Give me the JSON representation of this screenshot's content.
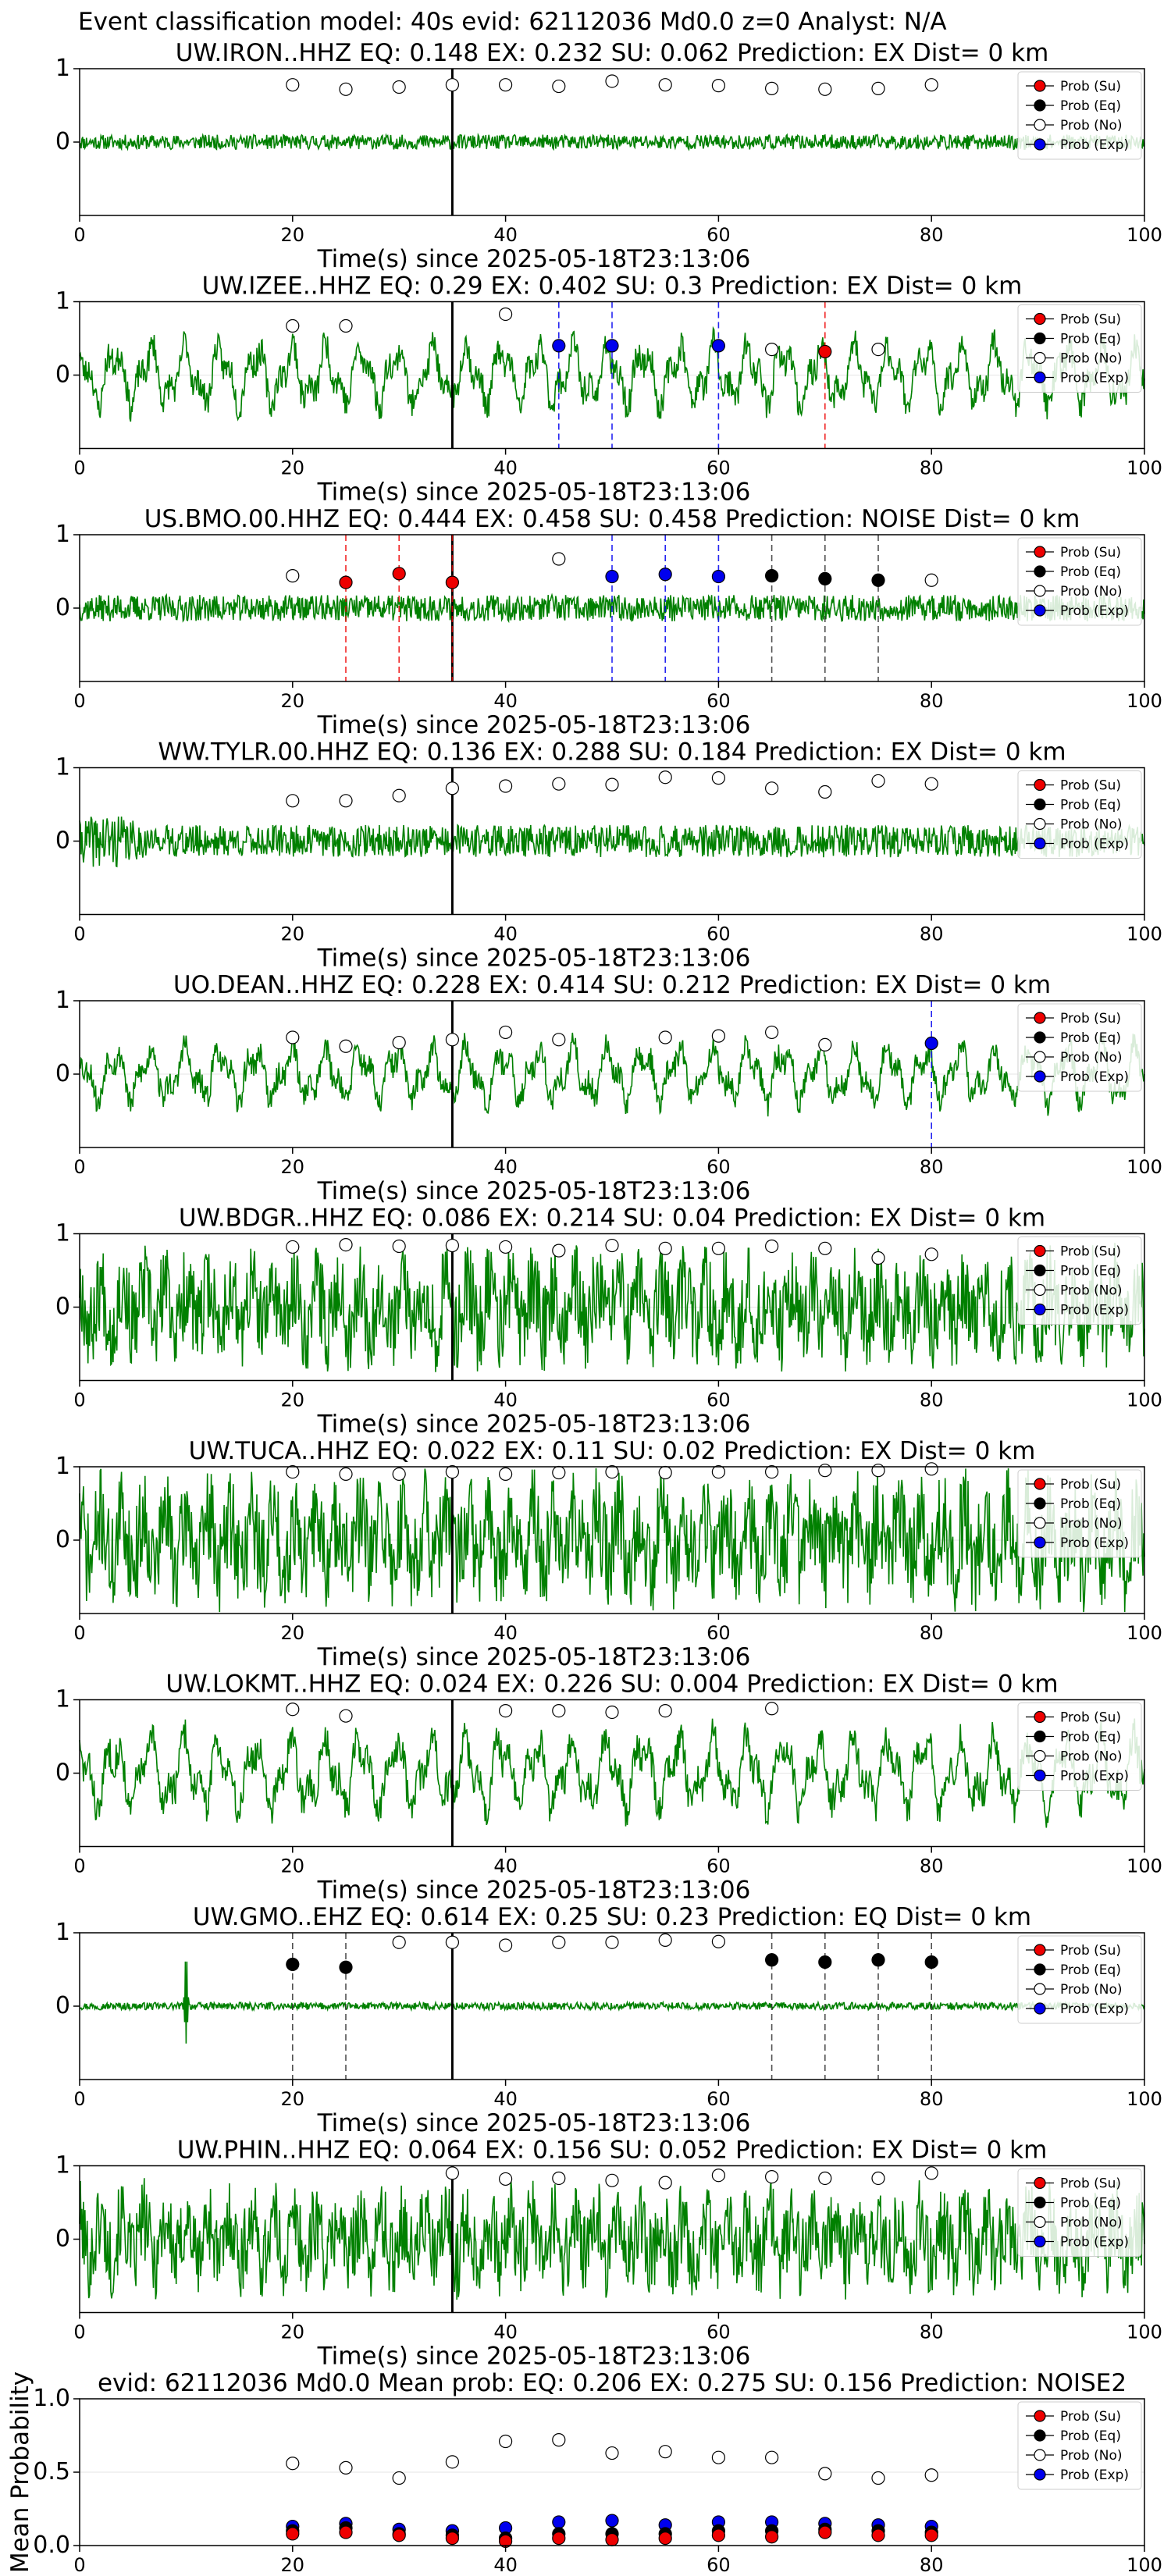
{
  "figure": {
    "suptitle": "Event classification model: 40s evid: 62112036 Md0.0 z=0 Analyst: N/A"
  },
  "colors": {
    "trace": "#008000",
    "su": "#ee0000",
    "eq": "#000000",
    "no": "#ffffff",
    "exp": "#0000ee",
    "pick": "#000000"
  },
  "legend": {
    "entries": [
      "Prob (Su)",
      "Prob (Eq)",
      "Prob (No)",
      "Prob (Exp)"
    ]
  },
  "chart_data": [
    {
      "type": "line",
      "station": "UW.IRON..HHZ",
      "title": "UW.IRON..HHZ   EQ: 0.148  EX: 0.232  SU: 0.062   Prediction: EX    Dist= 0 km",
      "xlabel": "Time(s) since 2025-05-18T23:13:06",
      "xlim": [
        0,
        100
      ],
      "ylim": [
        -1,
        1
      ],
      "xticks": [
        "0",
        "20",
        "40",
        "60",
        "80",
        "100"
      ],
      "yticks": [
        "1",
        "0"
      ],
      "pick_time": 35,
      "trace": {
        "amplitude": 0.1,
        "style": "noise",
        "seed": 11
      },
      "points": [
        {
          "x": 20,
          "y": 0.78,
          "cls": "no"
        },
        {
          "x": 25,
          "y": 0.72,
          "cls": "no"
        },
        {
          "x": 30,
          "y": 0.75,
          "cls": "no"
        },
        {
          "x": 35,
          "y": 0.78,
          "cls": "no"
        },
        {
          "x": 40,
          "y": 0.78,
          "cls": "no"
        },
        {
          "x": 45,
          "y": 0.76,
          "cls": "no"
        },
        {
          "x": 50,
          "y": 0.83,
          "cls": "no"
        },
        {
          "x": 55,
          "y": 0.78,
          "cls": "no"
        },
        {
          "x": 60,
          "y": 0.77,
          "cls": "no"
        },
        {
          "x": 65,
          "y": 0.73,
          "cls": "no"
        },
        {
          "x": 70,
          "y": 0.72,
          "cls": "no"
        },
        {
          "x": 75,
          "y": 0.73,
          "cls": "no"
        },
        {
          "x": 80,
          "y": 0.78,
          "cls": "no"
        }
      ]
    },
    {
      "type": "line",
      "station": "UW.IZEE..HHZ",
      "title": "UW.IZEE..HHZ   EQ: 0.29  EX: 0.402  SU: 0.3   Prediction: EX    Dist= 0 km",
      "xlabel": "Time(s) since 2025-05-18T23:13:06",
      "xlim": [
        0,
        100
      ],
      "ylim": [
        -1,
        1
      ],
      "xticks": [
        "0",
        "20",
        "40",
        "60",
        "80",
        "100"
      ],
      "yticks": [
        "1",
        "0"
      ],
      "pick_time": 35,
      "trace": {
        "amplitude": 0.55,
        "style": "wave",
        "seed": 23
      },
      "points": [
        {
          "x": 20,
          "y": 0.67,
          "cls": "no"
        },
        {
          "x": 25,
          "y": 0.67,
          "cls": "no"
        },
        {
          "x": 40,
          "y": 0.83,
          "cls": "no"
        },
        {
          "x": 45,
          "y": 0.4,
          "cls": "exp"
        },
        {
          "x": 50,
          "y": 0.4,
          "cls": "exp"
        },
        {
          "x": 60,
          "y": 0.4,
          "cls": "exp"
        },
        {
          "x": 65,
          "y": 0.35,
          "cls": "no"
        },
        {
          "x": 70,
          "y": 0.32,
          "cls": "su"
        },
        {
          "x": 75,
          "y": 0.35,
          "cls": "no"
        }
      ]
    },
    {
      "type": "line",
      "station": "US.BMO.00.HHZ",
      "title": "US.BMO.00.HHZ   EQ: 0.444  EX: 0.458  SU: 0.458   Prediction: NOISE    Dist= 0 km",
      "xlabel": "Time(s) since 2025-05-18T23:13:06",
      "xlim": [
        0,
        100
      ],
      "ylim": [
        -1,
        1
      ],
      "xticks": [
        "0",
        "20",
        "40",
        "60",
        "80",
        "100"
      ],
      "yticks": [
        "1",
        "0"
      ],
      "pick_time": 35,
      "trace": {
        "amplitude": 0.18,
        "style": "noise",
        "seed": 37
      },
      "points": [
        {
          "x": 20,
          "y": 0.44,
          "cls": "no"
        },
        {
          "x": 25,
          "y": 0.35,
          "cls": "su"
        },
        {
          "x": 30,
          "y": 0.47,
          "cls": "su"
        },
        {
          "x": 35,
          "y": 0.35,
          "cls": "su"
        },
        {
          "x": 45,
          "y": 0.67,
          "cls": "no"
        },
        {
          "x": 50,
          "y": 0.43,
          "cls": "exp"
        },
        {
          "x": 55,
          "y": 0.46,
          "cls": "exp"
        },
        {
          "x": 60,
          "y": 0.43,
          "cls": "exp"
        },
        {
          "x": 65,
          "y": 0.44,
          "cls": "eq"
        },
        {
          "x": 70,
          "y": 0.4,
          "cls": "eq"
        },
        {
          "x": 75,
          "y": 0.38,
          "cls": "eq"
        },
        {
          "x": 80,
          "y": 0.38,
          "cls": "no"
        }
      ]
    },
    {
      "type": "line",
      "station": "WW.TYLR.00.HHZ",
      "title": "WW.TYLR.00.HHZ   EQ: 0.136  EX: 0.288  SU: 0.184   Prediction: EX    Dist= 0 km",
      "xlabel": "Time(s) since 2025-05-18T23:13:06",
      "xlim": [
        0,
        100
      ],
      "ylim": [
        -1,
        1
      ],
      "xticks": [
        "0",
        "20",
        "40",
        "60",
        "80",
        "100"
      ],
      "yticks": [
        "1",
        "0"
      ],
      "pick_time": 35,
      "trace": {
        "amplitude": 0.22,
        "style": "burst",
        "seed": 41
      },
      "points": [
        {
          "x": 20,
          "y": 0.55,
          "cls": "no"
        },
        {
          "x": 25,
          "y": 0.55,
          "cls": "no"
        },
        {
          "x": 30,
          "y": 0.62,
          "cls": "no"
        },
        {
          "x": 35,
          "y": 0.72,
          "cls": "no"
        },
        {
          "x": 40,
          "y": 0.75,
          "cls": "no"
        },
        {
          "x": 45,
          "y": 0.78,
          "cls": "no"
        },
        {
          "x": 50,
          "y": 0.77,
          "cls": "no"
        },
        {
          "x": 55,
          "y": 0.87,
          "cls": "no"
        },
        {
          "x": 60,
          "y": 0.86,
          "cls": "no"
        },
        {
          "x": 65,
          "y": 0.72,
          "cls": "no"
        },
        {
          "x": 70,
          "y": 0.67,
          "cls": "no"
        },
        {
          "x": 75,
          "y": 0.82,
          "cls": "no"
        },
        {
          "x": 80,
          "y": 0.78,
          "cls": "no"
        }
      ]
    },
    {
      "type": "line",
      "station": "UO.DEAN..HHZ",
      "title": "UO.DEAN..HHZ   EQ: 0.228  EX: 0.414  SU: 0.212   Prediction: EX    Dist= 0 km",
      "xlabel": "Time(s) since 2025-05-18T23:13:06",
      "xlim": [
        0,
        100
      ],
      "ylim": [
        -1,
        1
      ],
      "xticks": [
        "0",
        "20",
        "40",
        "60",
        "80",
        "100"
      ],
      "yticks": [
        "1",
        "0"
      ],
      "pick_time": 35,
      "trace": {
        "amplitude": 0.5,
        "style": "wave",
        "seed": 53
      },
      "points": [
        {
          "x": 20,
          "y": 0.5,
          "cls": "no"
        },
        {
          "x": 25,
          "y": 0.38,
          "cls": "no"
        },
        {
          "x": 30,
          "y": 0.43,
          "cls": "no"
        },
        {
          "x": 35,
          "y": 0.47,
          "cls": "no"
        },
        {
          "x": 40,
          "y": 0.57,
          "cls": "no"
        },
        {
          "x": 45,
          "y": 0.47,
          "cls": "no"
        },
        {
          "x": 55,
          "y": 0.5,
          "cls": "no"
        },
        {
          "x": 60,
          "y": 0.52,
          "cls": "no"
        },
        {
          "x": 65,
          "y": 0.57,
          "cls": "no"
        },
        {
          "x": 70,
          "y": 0.4,
          "cls": "no"
        },
        {
          "x": 80,
          "y": 0.42,
          "cls": "exp"
        }
      ]
    },
    {
      "type": "line",
      "station": "UW.BDGR..HHZ",
      "title": "UW.BDGR..HHZ   EQ: 0.086  EX: 0.214  SU: 0.04   Prediction: EX    Dist= 0 km",
      "xlabel": "Time(s) since 2025-05-18T23:13:06",
      "xlim": [
        0,
        100
      ],
      "ylim": [
        -1,
        1
      ],
      "xticks": [
        "0",
        "20",
        "40",
        "60",
        "80",
        "100"
      ],
      "yticks": [
        "1",
        "0"
      ],
      "pick_time": 35,
      "trace": {
        "amplitude": 0.75,
        "style": "dense",
        "seed": 67
      },
      "points": [
        {
          "x": 20,
          "y": 0.82,
          "cls": "no"
        },
        {
          "x": 25,
          "y": 0.85,
          "cls": "no"
        },
        {
          "x": 30,
          "y": 0.83,
          "cls": "no"
        },
        {
          "x": 35,
          "y": 0.84,
          "cls": "no"
        },
        {
          "x": 40,
          "y": 0.82,
          "cls": "no"
        },
        {
          "x": 45,
          "y": 0.77,
          "cls": "no"
        },
        {
          "x": 50,
          "y": 0.84,
          "cls": "no"
        },
        {
          "x": 55,
          "y": 0.8,
          "cls": "no"
        },
        {
          "x": 60,
          "y": 0.8,
          "cls": "no"
        },
        {
          "x": 65,
          "y": 0.83,
          "cls": "no"
        },
        {
          "x": 70,
          "y": 0.8,
          "cls": "no"
        },
        {
          "x": 75,
          "y": 0.67,
          "cls": "no"
        },
        {
          "x": 80,
          "y": 0.72,
          "cls": "no"
        }
      ]
    },
    {
      "type": "line",
      "station": "UW.TUCA..HHZ",
      "title": "UW.TUCA..HHZ   EQ: 0.022  EX: 0.11  SU: 0.02   Prediction: EX    Dist= 0 km",
      "xlabel": "Time(s) since 2025-05-18T23:13:06",
      "xlim": [
        0,
        100
      ],
      "ylim": [
        -1,
        1
      ],
      "xticks": [
        "0",
        "20",
        "40",
        "60",
        "80",
        "100"
      ],
      "yticks": [
        "1",
        "0"
      ],
      "pick_time": 35,
      "trace": {
        "amplitude": 0.85,
        "style": "dense",
        "seed": 71
      },
      "points": [
        {
          "x": 20,
          "y": 0.93,
          "cls": "no"
        },
        {
          "x": 25,
          "y": 0.9,
          "cls": "no"
        },
        {
          "x": 30,
          "y": 0.9,
          "cls": "no"
        },
        {
          "x": 35,
          "y": 0.93,
          "cls": "no"
        },
        {
          "x": 40,
          "y": 0.9,
          "cls": "no"
        },
        {
          "x": 45,
          "y": 0.92,
          "cls": "no"
        },
        {
          "x": 50,
          "y": 0.93,
          "cls": "no"
        },
        {
          "x": 55,
          "y": 0.92,
          "cls": "no"
        },
        {
          "x": 60,
          "y": 0.93,
          "cls": "no"
        },
        {
          "x": 65,
          "y": 0.93,
          "cls": "no"
        },
        {
          "x": 70,
          "y": 0.95,
          "cls": "no"
        },
        {
          "x": 75,
          "y": 0.95,
          "cls": "no"
        },
        {
          "x": 80,
          "y": 0.97,
          "cls": "no"
        }
      ]
    },
    {
      "type": "line",
      "station": "UW.LOKMT..HHZ",
      "title": "UW.LOKMT..HHZ   EQ: 0.024  EX: 0.226  SU: 0.004   Prediction: EX    Dist= 0 km",
      "xlabel": "Time(s) since 2025-05-18T23:13:06",
      "xlim": [
        0,
        100
      ],
      "ylim": [
        -1,
        1
      ],
      "xticks": [
        "0",
        "20",
        "40",
        "60",
        "80",
        "100"
      ],
      "yticks": [
        "1",
        "0"
      ],
      "pick_time": 35,
      "trace": {
        "amplitude": 0.65,
        "style": "wave",
        "seed": 83
      },
      "points": [
        {
          "x": 20,
          "y": 0.87,
          "cls": "no"
        },
        {
          "x": 25,
          "y": 0.78,
          "cls": "no"
        },
        {
          "x": 40,
          "y": 0.85,
          "cls": "no"
        },
        {
          "x": 45,
          "y": 0.85,
          "cls": "no"
        },
        {
          "x": 50,
          "y": 0.83,
          "cls": "no"
        },
        {
          "x": 55,
          "y": 0.85,
          "cls": "no"
        },
        {
          "x": 65,
          "y": 0.88,
          "cls": "no"
        }
      ]
    },
    {
      "type": "line",
      "station": "UW.GMO..EHZ",
      "title": "UW.GMO..EHZ   EQ: 0.614  EX: 0.25  SU: 0.23   Prediction: EQ    Dist= 0 km",
      "xlabel": "Time(s) since 2025-05-18T23:13:06",
      "xlim": [
        0,
        100
      ],
      "ylim": [
        -1,
        1
      ],
      "xticks": [
        "0",
        "20",
        "40",
        "60",
        "80",
        "100"
      ],
      "yticks": [
        "1",
        "0"
      ],
      "pick_time": 35,
      "trace": {
        "amplitude": 0.05,
        "style": "quiet",
        "seed": 97
      },
      "points": [
        {
          "x": 20,
          "y": 0.57,
          "cls": "eq"
        },
        {
          "x": 25,
          "y": 0.53,
          "cls": "eq"
        },
        {
          "x": 30,
          "y": 0.87,
          "cls": "no"
        },
        {
          "x": 35,
          "y": 0.87,
          "cls": "no"
        },
        {
          "x": 40,
          "y": 0.83,
          "cls": "no"
        },
        {
          "x": 45,
          "y": 0.87,
          "cls": "no"
        },
        {
          "x": 50,
          "y": 0.87,
          "cls": "no"
        },
        {
          "x": 55,
          "y": 0.9,
          "cls": "no"
        },
        {
          "x": 60,
          "y": 0.88,
          "cls": "no"
        },
        {
          "x": 65,
          "y": 0.63,
          "cls": "eq"
        },
        {
          "x": 70,
          "y": 0.6,
          "cls": "eq"
        },
        {
          "x": 75,
          "y": 0.63,
          "cls": "eq"
        },
        {
          "x": 80,
          "y": 0.6,
          "cls": "eq"
        }
      ]
    },
    {
      "type": "line",
      "station": "UW.PHIN..HHZ",
      "title": "UW.PHIN..HHZ   EQ: 0.064  EX: 0.156  SU: 0.052   Prediction: EX    Dist= 0 km",
      "xlabel": "Time(s) since 2025-05-18T23:13:06",
      "xlim": [
        0,
        100
      ],
      "ylim": [
        -1,
        1
      ],
      "xticks": [
        "0",
        "20",
        "40",
        "60",
        "80",
        "100"
      ],
      "yticks": [
        "1",
        "0"
      ],
      "pick_time": 35,
      "trace": {
        "amplitude": 0.7,
        "style": "dense",
        "seed": 101
      },
      "points": [
        {
          "x": 35,
          "y": 0.9,
          "cls": "no"
        },
        {
          "x": 40,
          "y": 0.82,
          "cls": "no"
        },
        {
          "x": 45,
          "y": 0.83,
          "cls": "no"
        },
        {
          "x": 50,
          "y": 0.8,
          "cls": "no"
        },
        {
          "x": 55,
          "y": 0.77,
          "cls": "no"
        },
        {
          "x": 60,
          "y": 0.87,
          "cls": "no"
        },
        {
          "x": 65,
          "y": 0.85,
          "cls": "no"
        },
        {
          "x": 70,
          "y": 0.83,
          "cls": "no"
        },
        {
          "x": 75,
          "y": 0.83,
          "cls": "no"
        },
        {
          "x": 80,
          "y": 0.9,
          "cls": "no"
        }
      ]
    },
    {
      "type": "scatter",
      "station": "mean",
      "title": "evid: 62112036  Md0.0   Mean prob:   EQ: 0.206  EX: 0.275  SU: 0.156   Prediction: NOISE2",
      "xlabel": "",
      "ylabel": "Mean Probability",
      "xlim": [
        0,
        100
      ],
      "ylim": [
        0,
        1
      ],
      "xticks": [
        "0",
        "20",
        "40",
        "60",
        "80",
        "100"
      ],
      "yticks": [
        "1.0",
        "0.5",
        "0.0"
      ],
      "x": [
        20,
        25,
        30,
        35,
        40,
        45,
        50,
        55,
        60,
        65,
        70,
        75,
        80
      ],
      "series": [
        {
          "name": "Prob (No)",
          "cls": "no",
          "values": [
            0.56,
            0.53,
            0.46,
            0.57,
            0.71,
            0.72,
            0.63,
            0.64,
            0.6,
            0.6,
            0.49,
            0.46,
            0.48
          ]
        },
        {
          "name": "Prob (Exp)",
          "cls": "exp",
          "values": [
            0.13,
            0.15,
            0.11,
            0.1,
            0.12,
            0.16,
            0.17,
            0.14,
            0.16,
            0.16,
            0.15,
            0.14,
            0.13
          ]
        },
        {
          "name": "Prob (Eq)",
          "cls": "eq",
          "values": [
            0.1,
            0.12,
            0.08,
            0.07,
            0.05,
            0.08,
            0.08,
            0.08,
            0.1,
            0.1,
            0.11,
            0.1,
            0.09
          ]
        },
        {
          "name": "Prob (Su)",
          "cls": "su",
          "values": [
            0.08,
            0.09,
            0.07,
            0.05,
            0.03,
            0.05,
            0.04,
            0.05,
            0.07,
            0.06,
            0.09,
            0.07,
            0.07
          ]
        }
      ]
    }
  ]
}
